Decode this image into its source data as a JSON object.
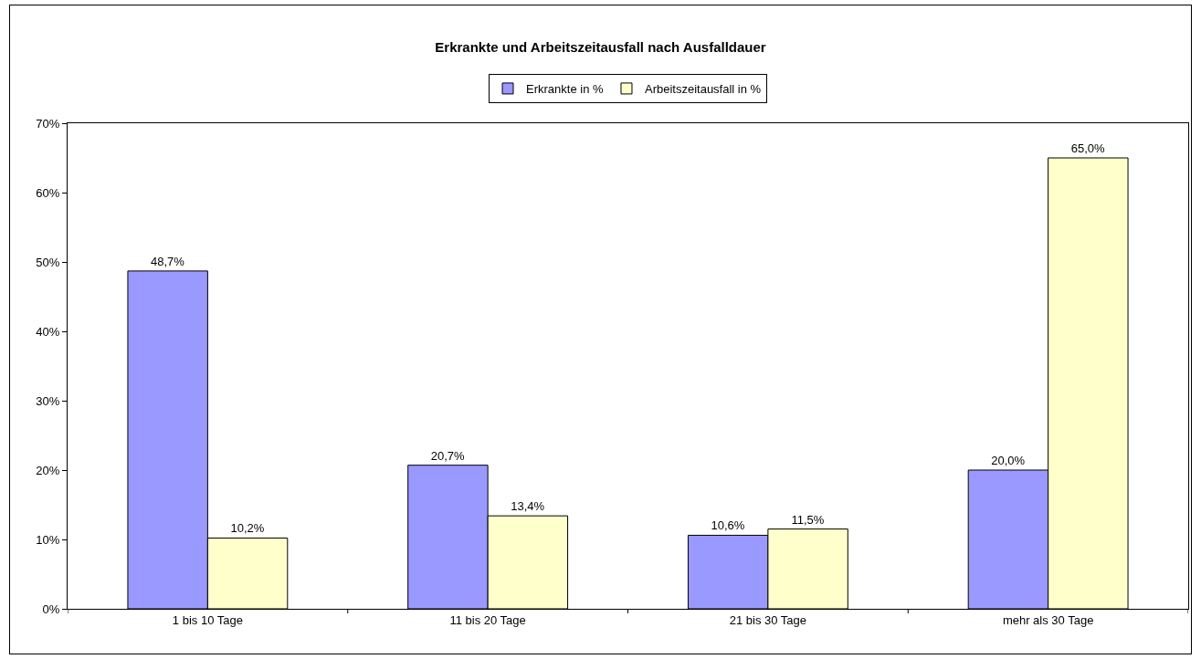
{
  "chart_data": {
    "type": "bar",
    "title": "Erkrankte und Arbeitszeitausfall nach Ausfalldauer",
    "categories": [
      "1 bis 10 Tage",
      "11 bis 20 Tage",
      "21 bis 30 Tage",
      "mehr als 30 Tage"
    ],
    "series": [
      {
        "name": "Erkrankte in %",
        "color": "#9999ff",
        "values": [
          48.7,
          20.7,
          10.6,
          20.0
        ],
        "value_labels": [
          "48,7%",
          "20,7%",
          "10,6%",
          "20,0%"
        ]
      },
      {
        "name": "Arbeitszeitausfall in %",
        "color": "#ffffcc",
        "values": [
          10.2,
          13.4,
          11.5,
          65.0
        ],
        "value_labels": [
          "10,2%",
          "13,4%",
          "11,5%",
          "65,0%"
        ]
      }
    ],
    "ylim": [
      0,
      70
    ],
    "yticks": [
      {
        "value": 0,
        "label": "0%"
      },
      {
        "value": 10,
        "label": "10%"
      },
      {
        "value": 20,
        "label": "20%"
      },
      {
        "value": 30,
        "label": "30%"
      },
      {
        "value": 40,
        "label": "40%"
      },
      {
        "value": 50,
        "label": "50%"
      },
      {
        "value": 60,
        "label": "60%"
      },
      {
        "value": 70,
        "label": "70%"
      }
    ],
    "grid": false,
    "legend": "top"
  }
}
